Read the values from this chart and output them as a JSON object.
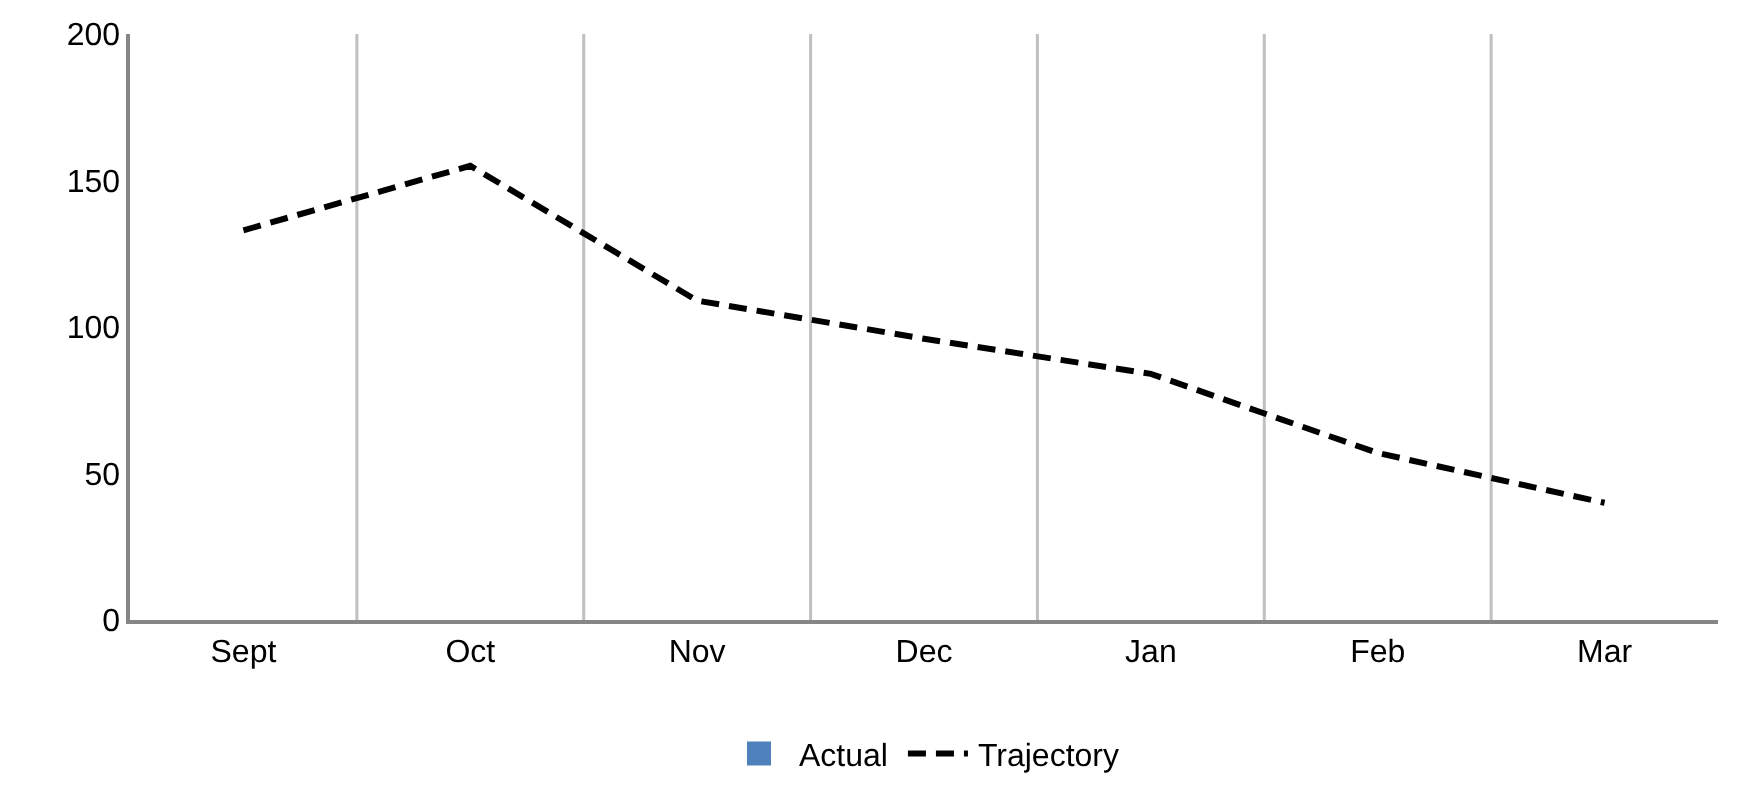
{
  "chart_data": {
    "type": "line",
    "categories": [
      "Sept",
      "Oct",
      "Nov",
      "Dec",
      "Jan",
      "Feb",
      "Mar"
    ],
    "series": [
      {
        "name": "Actual",
        "type": "bar",
        "color": "#4f81bd",
        "values": [
          null,
          null,
          null,
          null,
          null,
          null,
          null
        ]
      },
      {
        "name": "Trajectory",
        "color": "#000000",
        "line_style": "dashed",
        "marker": "none",
        "values": [
          133,
          155,
          109,
          96,
          84,
          57,
          40
        ]
      }
    ],
    "ylim": [
      0,
      200
    ],
    "yticks": [
      0,
      50,
      100,
      150,
      200
    ],
    "grid": "x",
    "legend": "bottom"
  }
}
